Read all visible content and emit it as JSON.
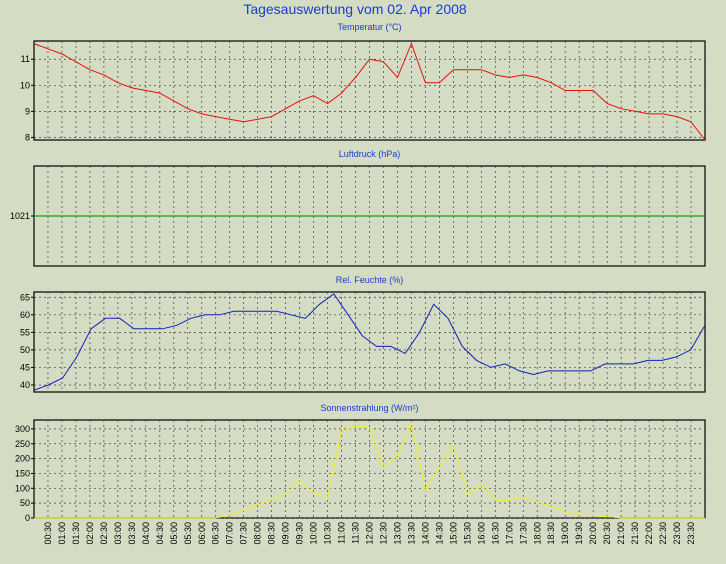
{
  "title": "Tagesauswertung vom 02. Apr 2008",
  "colors": {
    "background": "#d4dcc4",
    "title": "#1a3cd0",
    "temperature": "#e81010",
    "pressure": "#10a010",
    "humidity": "#1020c0",
    "solar": "#f0f020"
  },
  "x_labels": [
    "00:30",
    "01:00",
    "01:30",
    "02:00",
    "02:30",
    "03:00",
    "03:30",
    "04:00",
    "04:30",
    "05:00",
    "05:30",
    "06:00",
    "06:30",
    "07:00",
    "07:30",
    "08:00",
    "08:30",
    "09:00",
    "09:30",
    "10:00",
    "10:30",
    "11:00",
    "11:30",
    "12:00",
    "12:30",
    "13:00",
    "13:30",
    "14:00",
    "14:30",
    "15:00",
    "15:30",
    "16:00",
    "16:30",
    "17:00",
    "17:30",
    "18:00",
    "18:30",
    "19:00",
    "19:30",
    "20:00",
    "20:30",
    "21:00",
    "21:30",
    "22:00",
    "22:30",
    "23:00",
    "23:30"
  ],
  "chart_data": [
    {
      "type": "line",
      "title": "Temperatur (°C)",
      "ylim": [
        7.9,
        11.7
      ],
      "yticks": [
        8,
        9,
        10,
        11
      ],
      "series": [
        {
          "values": [
            11.6,
            11.4,
            11.2,
            10.9,
            10.6,
            10.4,
            10.1,
            9.9,
            9.8,
            9.7,
            9.4,
            9.1,
            8.9,
            8.8,
            8.7,
            8.6,
            8.7,
            8.8,
            9.1,
            9.4,
            9.6,
            9.3,
            9.7,
            10.3,
            11.0,
            10.9,
            10.3,
            11.6,
            10.1,
            10.1,
            10.6,
            10.6,
            10.6,
            10.4,
            10.3,
            10.4,
            10.3,
            10.1,
            9.8,
            9.8,
            9.8,
            9.3,
            9.1,
            9.0,
            8.9,
            8.9,
            8.8,
            8.6,
            7.9
          ]
        }
      ]
    },
    {
      "type": "line",
      "title": "Luftdruck (hPa)",
      "ylim": [
        1019,
        1023
      ],
      "yticks": [
        1021
      ],
      "series": [
        {
          "values": [
            1021,
            1021
          ]
        }
      ]
    },
    {
      "type": "line",
      "title": "Rel. Feuchte (%)",
      "ylim": [
        38,
        66.5
      ],
      "yticks": [
        40,
        45,
        50,
        55,
        60,
        65
      ],
      "series": [
        {
          "values": [
            38.5,
            40,
            42,
            48,
            56,
            59,
            59,
            56,
            56,
            56,
            57,
            59,
            60,
            60,
            61,
            61,
            61,
            61,
            60,
            59,
            63,
            66,
            60,
            54,
            51,
            51,
            49,
            55,
            63,
            59,
            51,
            47,
            45,
            46,
            44,
            43,
            44,
            44,
            44,
            44,
            46,
            46,
            46,
            47,
            47,
            48,
            50,
            57
          ]
        }
      ]
    },
    {
      "type": "line",
      "title": "Sonnenstrahlung (W/m²)",
      "ylim": [
        0,
        330
      ],
      "yticks": [
        0,
        50,
        100,
        150,
        200,
        250,
        300
      ],
      "series": [
        {
          "values": [
            0,
            0,
            0,
            0,
            0,
            0,
            0,
            0,
            0,
            0,
            0,
            0,
            0,
            0,
            10,
            25,
            45,
            60,
            80,
            125,
            85,
            70,
            290,
            310,
            305,
            170,
            210,
            320,
            90,
            170,
            245,
            80,
            110,
            60,
            60,
            70,
            55,
            40,
            20,
            10,
            8,
            5,
            0,
            0,
            0,
            0,
            0,
            0,
            0
          ]
        }
      ]
    }
  ]
}
